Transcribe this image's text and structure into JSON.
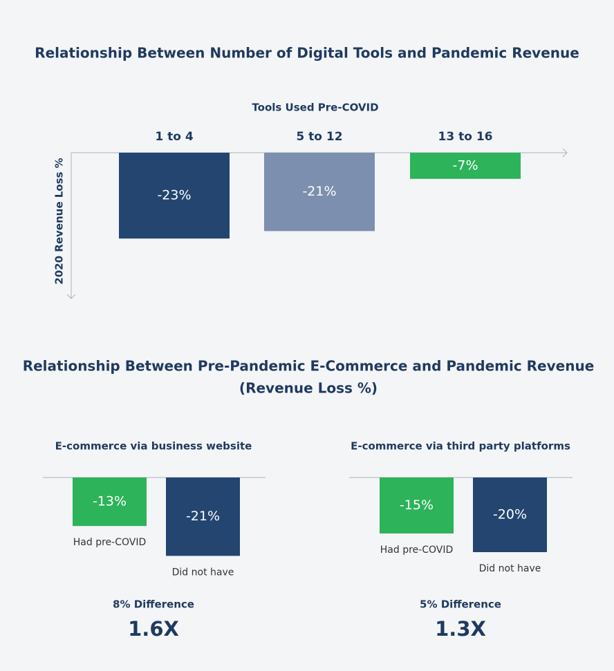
{
  "chart_data": [
    {
      "type": "bar",
      "title": "Relationship Between Number of Digital Tools and Pandemic Revenue",
      "x_label": "Tools Used Pre-COVID",
      "y_label": "2020 Revenue Loss %",
      "categories": [
        "1 to 4",
        "5 to 12",
        "13 to 16"
      ],
      "values": [
        -23,
        -21,
        -7
      ],
      "value_labels": [
        "-23%",
        "-21%",
        "-7%"
      ],
      "colors": [
        "#234570",
        "#7d8fae",
        "#2db35a"
      ]
    },
    {
      "type": "bar",
      "title": "E-commerce via business website",
      "categories": [
        "Had pre-COVID",
        "Did not have"
      ],
      "values": [
        -13,
        -21
      ],
      "value_labels": [
        "-13%",
        "-21%"
      ],
      "colors": [
        "#2db35a",
        "#234570"
      ],
      "annotation": "8% Difference",
      "multiplier": "1.6X"
    },
    {
      "type": "bar",
      "title": "E-commerce via third party platforms",
      "categories": [
        "Had pre-COVID",
        "Did not have"
      ],
      "values": [
        -15,
        -20
      ],
      "value_labels": [
        "-15%",
        "-20%"
      ],
      "colors": [
        "#2db35a",
        "#234570"
      ],
      "annotation": "5% Difference",
      "multiplier": "1.3X"
    }
  ],
  "section": {
    "title": "Relationship Between Pre-Pandemic E-Commerce and Pandemic Revenue",
    "subtitle": "(Revenue Loss %)"
  }
}
